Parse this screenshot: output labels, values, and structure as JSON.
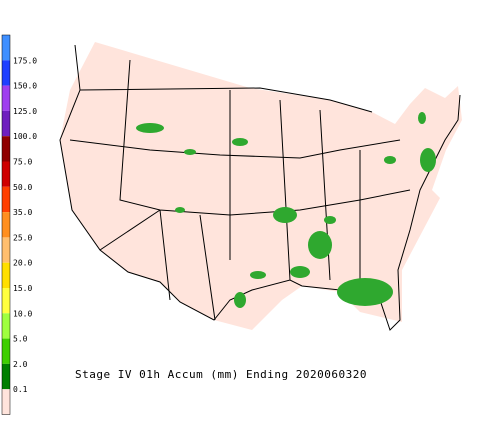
{
  "legend": {
    "items": [
      {
        "label": "175.0",
        "color": "#3f8fff"
      },
      {
        "label": "150.0",
        "color": "#1f3fff"
      },
      {
        "label": "125.0",
        "color": "#9f3fef"
      },
      {
        "label": "100.0",
        "color": "#6f1fbf"
      },
      {
        "label": "75.0",
        "color": "#8f0000"
      },
      {
        "label": "50.0",
        "color": "#cf0000"
      },
      {
        "label": "35.0",
        "color": "#ff3f00"
      },
      {
        "label": "25.0",
        "color": "#ff8f1f"
      },
      {
        "label": "20.0",
        "color": "#ffbf6f"
      },
      {
        "label": "15.0",
        "color": "#ffdf00"
      },
      {
        "label": "10.0",
        "color": "#ffff3f"
      },
      {
        "label": "5.0",
        "color": "#9fff3f"
      },
      {
        "label": "2.0",
        "color": "#3fcf00"
      },
      {
        "label": "0.1",
        "color": "#007f00"
      }
    ],
    "base_color": "#ffe4dc"
  },
  "caption": "Stage IV 01h Accum (mm) Ending 2020060320"
}
